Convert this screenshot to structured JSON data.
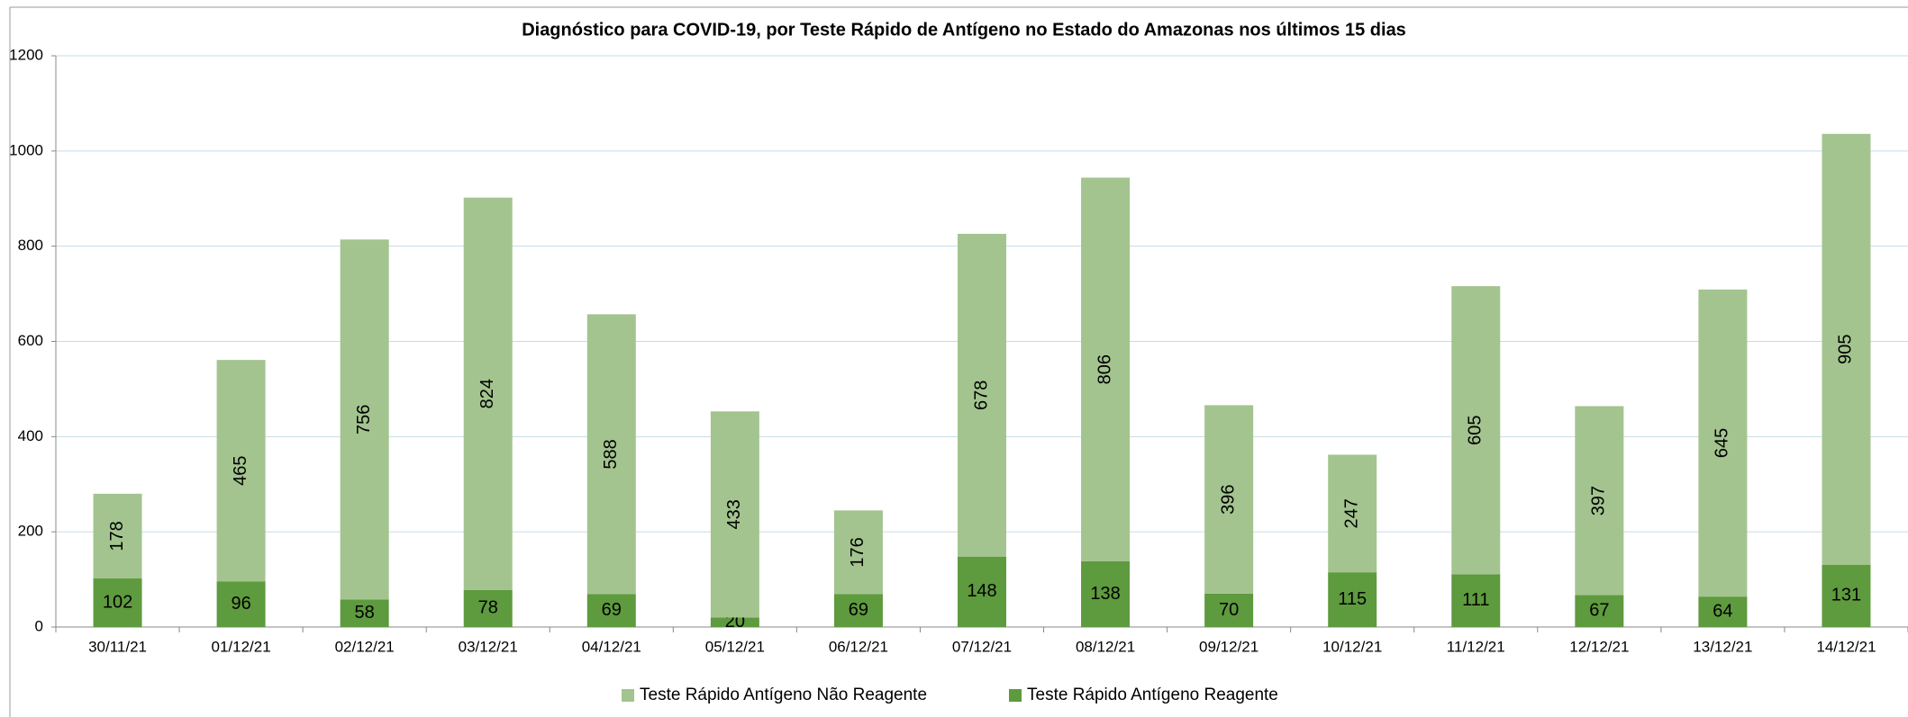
{
  "chart_data": {
    "type": "stacked_bar",
    "title": "Diagnóstico para COVID-19, por  Teste Rápido de Antígeno no Estado do Amazonas nos últimos 15 dias",
    "categories": [
      "30/11/21",
      "01/12/21",
      "02/12/21",
      "03/12/21",
      "04/12/21",
      "05/12/21",
      "06/12/21",
      "07/12/21",
      "08/12/21",
      "09/12/21",
      "10/12/21",
      "11/12/21",
      "12/12/21",
      "13/12/21",
      "14/12/21"
    ],
    "series": [
      {
        "name": "Teste Rápido Antígeno Reagente",
        "color": "#5e9a3e",
        "values": [
          102,
          96,
          58,
          78,
          69,
          20,
          69,
          148,
          138,
          70,
          115,
          111,
          67,
          64,
          131
        ]
      },
      {
        "name": "Teste Rápido Antígeno Não Reagente",
        "color": "#a3c48f",
        "values": [
          178,
          465,
          756,
          824,
          588,
          433,
          176,
          678,
          806,
          396,
          247,
          605,
          397,
          645,
          905
        ]
      }
    ],
    "ylim": [
      0,
      1200
    ],
    "yticks": [
      0,
      200,
      400,
      600,
      800,
      1000,
      1200
    ],
    "grid": true
  }
}
